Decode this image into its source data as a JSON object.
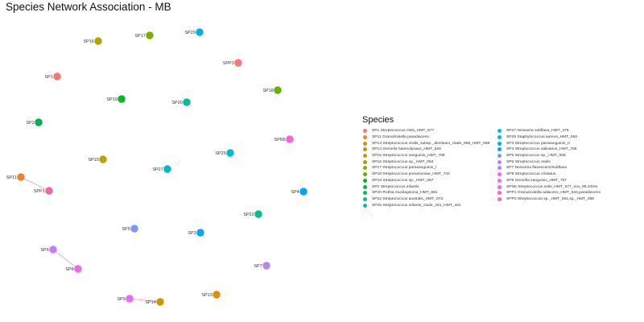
{
  "title": "Species Network Association - MB",
  "chart_data": {
    "type": "network",
    "nodes": [
      {
        "id": "SP16",
        "label": "SP16",
        "color": "#B0A500"
      },
      {
        "id": "SP17",
        "label": "SP17",
        "color": "#7CAE00"
      },
      {
        "id": "SP29",
        "label": "SP29",
        "color": "#00B0DF"
      },
      {
        "id": "SPP3",
        "label": "SPP3",
        "color": "#F8767D"
      },
      {
        "id": "SP1",
        "label": "SP1",
        "color": "#F8766D"
      },
      {
        "id": "SP18",
        "label": "SP18",
        "color": "#64B200"
      },
      {
        "id": "SP19",
        "label": "SP19",
        "color": "#00B81F"
      },
      {
        "id": "SP20",
        "label": "SP20",
        "color": "#00BB9C"
      },
      {
        "id": "SP2",
        "label": "SP2",
        "color": "#00B050"
      },
      {
        "id": "SPN5",
        "label": "SPN5",
        "color": "#F563E3"
      },
      {
        "id": "SP25",
        "label": "SP25",
        "color": "#00BFC4"
      },
      {
        "id": "SP15",
        "label": "SP15",
        "color": "#BBA200"
      },
      {
        "id": "SP27",
        "label": "SP27",
        "color": "#00B8C7"
      },
      {
        "id": "SP11",
        "label": "SP11",
        "color": "#EA8331"
      },
      {
        "id": "SPP1",
        "label": "SPP1",
        "color": "#F564A7"
      },
      {
        "id": "SP4",
        "label": "SP4",
        "color": "#00A5FF"
      },
      {
        "id": "SP22",
        "label": "SP22",
        "color": "#00BF8C"
      },
      {
        "id": "SP5",
        "label": "SP5",
        "color": "#7F96FF"
      },
      {
        "id": "SP3",
        "label": "SP3",
        "color": "#00A9F0"
      },
      {
        "id": "SP6",
        "label": "SP6",
        "color": "#C77CFF"
      },
      {
        "id": "SP8",
        "label": "SP8",
        "color": "#EF67EB"
      },
      {
        "id": "SP7",
        "label": "SP7",
        "color": "#BB83F7"
      },
      {
        "id": "SP9",
        "label": "SP9",
        "color": "#E76BF3"
      },
      {
        "id": "SP14",
        "label": "SP14",
        "color": "#D39200"
      },
      {
        "id": "SP13",
        "label": "SP13",
        "color": "#DE9000"
      }
    ],
    "edges": [
      {
        "source": "SP11",
        "target": "SPP1",
        "color": "#F2A290"
      },
      {
        "source": "SP6",
        "target": "SP8",
        "color": "#D9A6F5"
      },
      {
        "source": "SP9",
        "target": "SP14",
        "color": "#F098B8"
      }
    ],
    "legend": {
      "title": "Species",
      "items": [
        {
          "label": "SP1 Streptococcus mitis_HMT_677",
          "color": "#F8766D"
        },
        {
          "label": "SP11 Granulicatella paradiacens",
          "color": "#EA8331"
        },
        {
          "label": "SP13 Streptococcus oralis_subsp._dentisani_clade_058_HMT_058",
          "color": "#DE9000"
        },
        {
          "label": "SP14 Gemella haemolysans_HMT_626",
          "color": "#C09B00"
        },
        {
          "label": "SP15 Streptococcus sanguinis_HMT_758",
          "color": "#BBA200"
        },
        {
          "label": "SP16 Streptococcus sp._HMT_064",
          "color": "#A3A500"
        },
        {
          "label": "SP17 Streptococcus parasanguinis_I",
          "color": "#8FAA00"
        },
        {
          "label": "SP18 Streptococcus pneumoniae_HMT_734",
          "color": "#64B200"
        },
        {
          "label": "SP19 Streptococcus sp._HMT_057",
          "color": "#00B81F"
        },
        {
          "label": "SP2 Streptococcus infantis",
          "color": "#00BA38"
        },
        {
          "label": "SP20 Rothia mucilaginosa_HMT_681",
          "color": "#00BC59"
        },
        {
          "label": "SP22 Streptococcus australis_HMT_073",
          "color": "#00BF8C"
        },
        {
          "label": "SP25 Streptococcus infantis_clade_431_HMT_431",
          "color": "#00BFAE"
        },
        {
          "label": "SP27 Neisseria subflava_HMT_476",
          "color": "#00BCD8"
        },
        {
          "label": "SP29 Staphylococcus aureus_HMT_550",
          "color": "#00B4EF"
        },
        {
          "label": "SP3 Streptococcus parasanguinis_II",
          "color": "#00A9FF"
        },
        {
          "label": "SP4 Streptococcus salivarius_HMT_755",
          "color": "#00A5FF"
        },
        {
          "label": "SP5 Streptococcus sp._HMT_066",
          "color": "#7F96FF"
        },
        {
          "label": "SP6 Streptococcus oralis",
          "color": "#B983FF"
        },
        {
          "label": "SP7 Neisseria flavescens/subflava",
          "color": "#C77CFF"
        },
        {
          "label": "SP8 Streptococcus cristatus",
          "color": "#E76BF3"
        },
        {
          "label": "SP9 Gemella sanguinis_HMT_757",
          "color": "#F564E3"
        },
        {
          "label": "SPN5 Streptococcus mitis_HMT_677_nov_99.242%",
          "color": "#FA62DB"
        },
        {
          "label": "SPP1 Granulicatella adiacens_HMT_534,paradiacens",
          "color": "#FF61C3"
        },
        {
          "label": "SPP3 Streptococcus sp._HMT_061,sp._HMT_066",
          "color": "#FF67A4"
        }
      ]
    }
  }
}
